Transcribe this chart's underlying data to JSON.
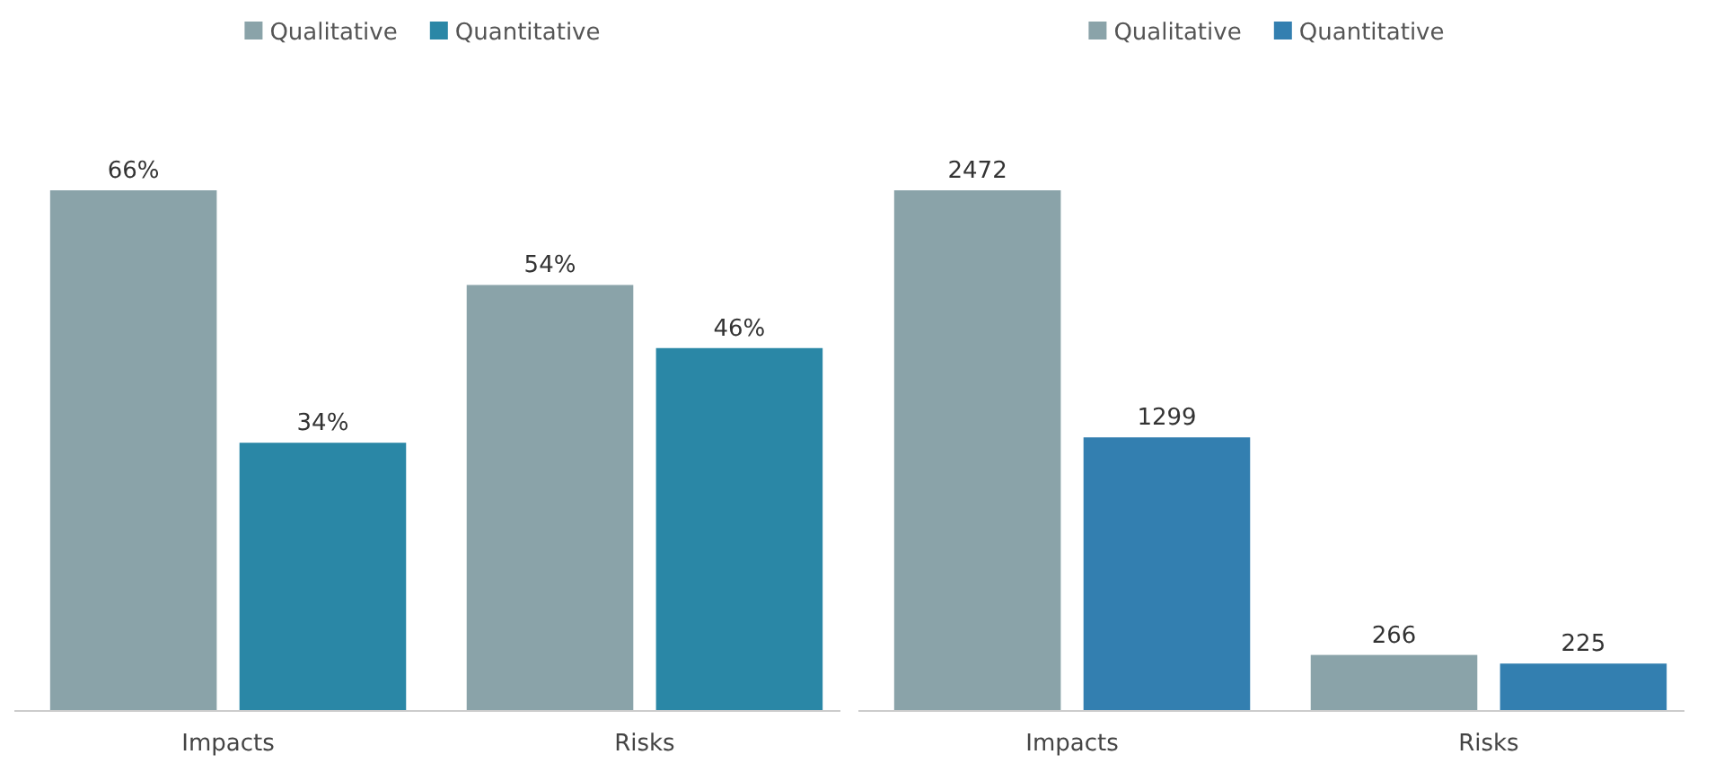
{
  "chart_data": [
    {
      "type": "bar",
      "categories": [
        "Impacts",
        "Risks"
      ],
      "legend": "top",
      "series": [
        {
          "name": "Qualitative",
          "color": "#8aa3a9",
          "values": [
            66,
            54
          ],
          "value_labels": [
            "66%",
            "54%"
          ]
        },
        {
          "name": "Quantitative",
          "color": "#2a87a6",
          "values": [
            34,
            46
          ],
          "value_labels": [
            "34%",
            "46%"
          ]
        }
      ]
    },
    {
      "type": "bar",
      "categories": [
        "Impacts",
        "Risks"
      ],
      "legend": "top",
      "data_labels": true,
      "series": [
        {
          "name": "Qualitative",
          "color": "#8aa3a9",
          "values": [
            2472,
            266
          ]
        },
        {
          "name": "Quantitative",
          "color": "#337fb0",
          "values": [
            1299,
            225
          ]
        }
      ]
    }
  ]
}
